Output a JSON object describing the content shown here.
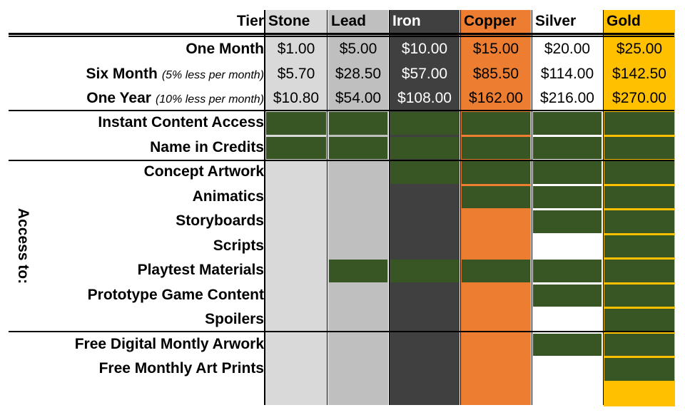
{
  "colors": {
    "stone": "#d9d9d9",
    "lead": "#bfbfbf",
    "iron": "#404040",
    "copper": "#ed7d31",
    "silver": "#ffffff",
    "gold": "#ffc000",
    "included": "#375623"
  },
  "header": {
    "tier_label": "Tier"
  },
  "tiers": [
    {
      "key": "stone",
      "name": "Stone",
      "text_color": "#000000"
    },
    {
      "key": "lead",
      "name": "Lead",
      "text_color": "#000000"
    },
    {
      "key": "iron",
      "name": "Iron",
      "text_color": "#ffffff"
    },
    {
      "key": "copper",
      "name": "Copper",
      "text_color": "#000000"
    },
    {
      "key": "silver",
      "name": "Silver",
      "text_color": "#000000"
    },
    {
      "key": "gold",
      "name": "Gold",
      "text_color": "#000000"
    }
  ],
  "pricing": [
    {
      "label": "One Month",
      "note": "",
      "prices": [
        "$1.00",
        "$5.00",
        "$10.00",
        "$15.00",
        "$20.00",
        "$25.00"
      ]
    },
    {
      "label": "Six Month",
      "note": "(5% less per month)",
      "prices": [
        "$5.70",
        "$28.50",
        "$57.00",
        "$85.50",
        "$114.00",
        "$142.50"
      ]
    },
    {
      "label": "One Year",
      "note": "(10% less per month)",
      "prices": [
        "$10.80",
        "$54.00",
        "$108.00",
        "$162.00",
        "$216.00",
        "$270.00"
      ]
    }
  ],
  "side_label": "Access to:",
  "features": [
    {
      "label": "Instant Content Access",
      "included": [
        true,
        true,
        true,
        true,
        true,
        true
      ]
    },
    {
      "label": "Name in Credits",
      "included": [
        true,
        true,
        true,
        true,
        true,
        true
      ]
    },
    {
      "label": "Concept Artwork",
      "included": [
        false,
        false,
        true,
        true,
        true,
        true
      ]
    },
    {
      "label": "Animatics",
      "included": [
        false,
        false,
        false,
        true,
        true,
        true
      ]
    },
    {
      "label": "Storyboards",
      "included": [
        false,
        false,
        false,
        false,
        true,
        true
      ]
    },
    {
      "label": "Scripts",
      "included": [
        false,
        false,
        false,
        false,
        false,
        true
      ]
    },
    {
      "label": "Playtest Materials",
      "included": [
        false,
        true,
        true,
        true,
        true,
        true
      ]
    },
    {
      "label": "Prototype Game Content",
      "included": [
        false,
        false,
        false,
        false,
        true,
        true
      ]
    },
    {
      "label": "Spoilers",
      "included": [
        false,
        false,
        false,
        false,
        false,
        true
      ]
    },
    {
      "label": "Free Digital Montly Arwork",
      "included": [
        false,
        false,
        false,
        false,
        true,
        true
      ]
    },
    {
      "label": "Free Monthly Art Prints",
      "included": [
        false,
        false,
        false,
        false,
        false,
        true
      ]
    }
  ]
}
